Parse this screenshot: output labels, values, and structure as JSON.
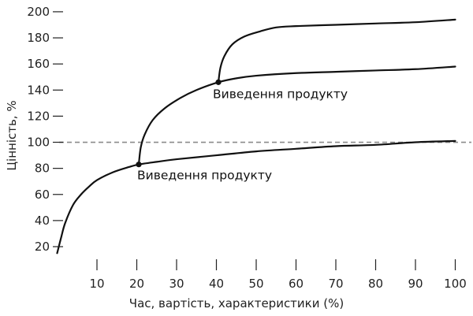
{
  "chart_data": {
    "type": "line",
    "xlabel": "Час, вартість, характеристики (%)",
    "ylabel": "Цінність, %",
    "xlim": [
      0,
      100
    ],
    "ylim": [
      15,
      200
    ],
    "x_ticks": [
      10,
      20,
      30,
      40,
      50,
      60,
      70,
      80,
      90,
      100
    ],
    "y_ticks": [
      20,
      40,
      60,
      80,
      100,
      120,
      140,
      160,
      180,
      200
    ],
    "reference_line": {
      "y": 100,
      "style": "dashed"
    },
    "series": [
      {
        "x": [
          0,
          1,
          2,
          4,
          6,
          8,
          10,
          14,
          18,
          20.5,
          25,
          30,
          40,
          50,
          60,
          70,
          80,
          90,
          100
        ],
        "values": [
          15,
          27,
          38,
          52,
          60,
          66,
          71,
          77,
          81,
          83,
          85,
          87,
          90,
          93,
          95,
          97,
          98,
          100,
          101
        ]
      },
      {
        "x": [
          20.5,
          21,
          22,
          24,
          27,
          31,
          35,
          40.5,
          45,
          50,
          60,
          70,
          80,
          90,
          100
        ],
        "values": [
          83,
          96,
          106,
          117,
          126,
          134,
          140,
          146,
          149,
          151,
          153,
          154,
          155,
          156,
          158
        ]
      },
      {
        "x": [
          40.5,
          41,
          42,
          44,
          47,
          51,
          55,
          60,
          70,
          80,
          90,
          100
        ],
        "values": [
          146,
          157,
          166,
          175,
          181,
          185,
          188,
          189,
          190,
          191,
          192,
          194
        ]
      }
    ],
    "points": [
      {
        "x": 20.5,
        "y": 83
      },
      {
        "x": 40.5,
        "y": 146
      }
    ],
    "annotations": [
      {
        "text": "Виведення продукту",
        "x": 20.5,
        "y": 83
      },
      {
        "text": "Виведення продукту",
        "x": 40.5,
        "y": 146
      }
    ]
  }
}
